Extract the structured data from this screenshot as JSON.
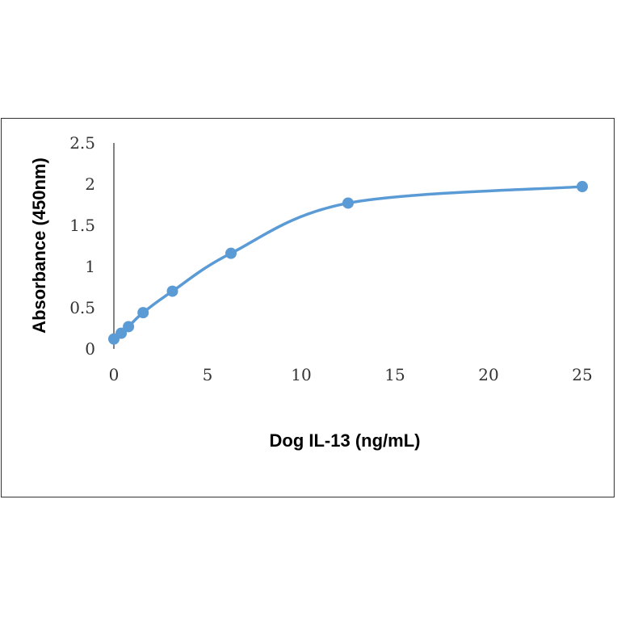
{
  "chart_data": {
    "type": "line",
    "title": "",
    "xlabel": "Dog IL-13 (ng/mL)",
    "ylabel": "Absorbance (450nm)",
    "xlim": [
      0,
      25
    ],
    "ylim": [
      0,
      2.5
    ],
    "x_ticks": [
      "0",
      "5",
      "10",
      "15",
      "20",
      "25"
    ],
    "y_ticks": [
      "0",
      "0.5",
      "1",
      "1.5",
      "2",
      "2.5"
    ],
    "grid": false,
    "smooth": true,
    "markers": true,
    "series_color": "#5b9bd5",
    "series": [
      {
        "x": [
          0,
          0.39,
          0.78,
          1.56,
          3.125,
          6.25,
          12.5,
          25
        ],
        "y": [
          0.12,
          0.19,
          0.27,
          0.44,
          0.7,
          1.16,
          1.77,
          1.97
        ]
      }
    ]
  }
}
